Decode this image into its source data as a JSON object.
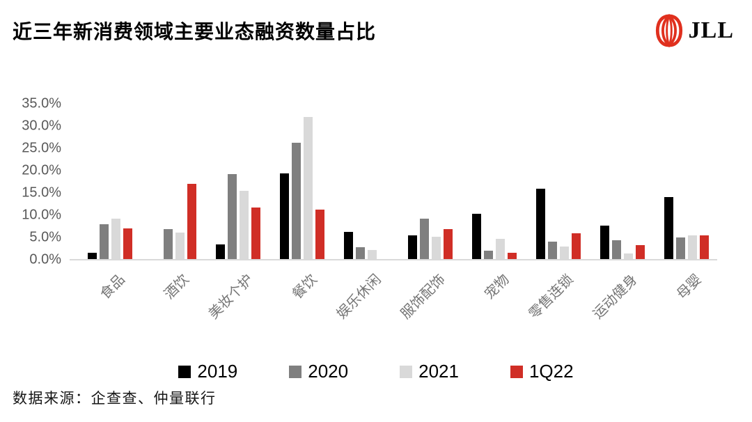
{
  "header": {
    "title": "近三年新消费领域主要业态融资数量占比",
    "logo_text": "JLL",
    "logo_red": "#E0301E"
  },
  "chart_data": {
    "type": "bar",
    "title": "近三年新消费领域主要业态融资数量占比",
    "categories": [
      "食品",
      "酒饮",
      "美妆个护",
      "餐饮",
      "娱乐休闲",
      "服饰配饰",
      "宠物",
      "零售连锁",
      "运动健身",
      "母婴"
    ],
    "series": [
      {
        "name": "2019",
        "color": "#000000",
        "values": [
          1.5,
          0,
          3.5,
          19.4,
          6.2,
          5.4,
          10.3,
          15.9,
          7.7,
          14.0
        ]
      },
      {
        "name": "2020",
        "color": "#7F7F7F",
        "values": [
          8.0,
          6.9,
          19.3,
          26.2,
          2.8,
          9.2,
          2.0,
          4.0,
          4.4,
          5.0
        ]
      },
      {
        "name": "2021",
        "color": "#D9D9D9",
        "values": [
          9.2,
          6.1,
          15.5,
          32.0,
          2.2,
          5.2,
          4.7,
          2.9,
          1.4,
          5.5
        ]
      },
      {
        "name": "1Q22",
        "color": "#D02E26",
        "values": [
          7.0,
          17.1,
          11.8,
          11.3,
          0,
          6.9,
          1.6,
          5.9,
          3.3,
          5.4
        ]
      }
    ],
    "xlabel": "",
    "ylabel": "",
    "ylim": [
      0,
      35
    ],
    "y_ticks": [
      "35.0%",
      "30.0%",
      "25.0%",
      "20.0%",
      "15.0%",
      "10.0%",
      "5.0%",
      "0.0%"
    ],
    "grid": false,
    "legend_position": "bottom",
    "unit": "percent"
  },
  "footer": {
    "source": "数据来源：企查查、仲量联行"
  }
}
